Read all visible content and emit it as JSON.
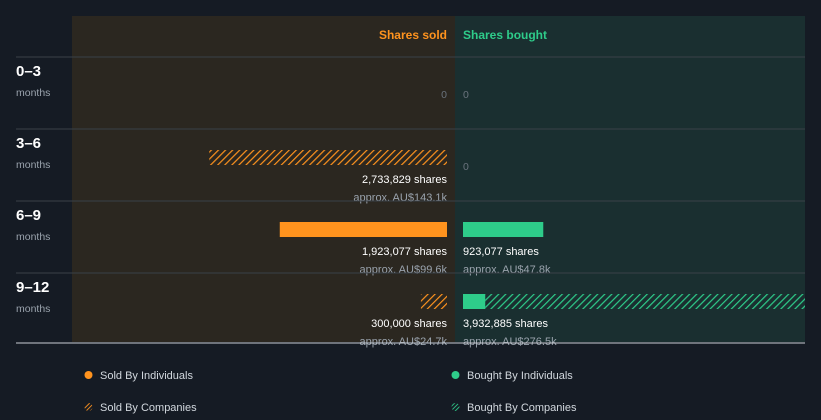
{
  "chart_data": {
    "type": "bar",
    "orientation": "horizontal-diverging",
    "column_headers": {
      "sold": "Shares sold",
      "bought": "Shares bought"
    },
    "unit_label": "months",
    "periods": [
      {
        "label": "0–3",
        "sold": {
          "total": 0,
          "individuals": 0,
          "companies": 0,
          "text": "0",
          "value_text": ""
        },
        "bought": {
          "total": 0,
          "individuals": 0,
          "companies": 0,
          "text": "0",
          "value_text": ""
        }
      },
      {
        "label": "3–6",
        "sold": {
          "total": 2733829,
          "individuals": 0,
          "companies": 2733829,
          "text": "2,733,829 shares",
          "value_text": "approx. AU$143.1k"
        },
        "bought": {
          "total": 0,
          "individuals": 0,
          "companies": 0,
          "text": "0",
          "value_text": ""
        }
      },
      {
        "label": "6–9",
        "sold": {
          "total": 1923077,
          "individuals": 1923077,
          "companies": 0,
          "text": "1,923,077 shares",
          "value_text": "approx. AU$99.6k"
        },
        "bought": {
          "total": 923077,
          "individuals": 923077,
          "companies": 0,
          "text": "923,077 shares",
          "value_text": "approx. AU$47.8k"
        }
      },
      {
        "label": "9–12",
        "sold": {
          "total": 300000,
          "individuals": 0,
          "companies": 300000,
          "text": "300,000 shares",
          "value_text": "approx. AU$24.7k"
        },
        "bought": {
          "total": 3932885,
          "individuals": 257000,
          "companies": 3675885,
          "text": "3,932,885 shares",
          "value_text": "approx. AU$276.5k"
        }
      }
    ],
    "legend": [
      {
        "key": "sold_individuals",
        "label": "Sold By Individuals",
        "color": "#ff931e",
        "style": "solid"
      },
      {
        "key": "bought_individuals",
        "label": "Bought By Individuals",
        "color": "#2ecc8a",
        "style": "solid"
      },
      {
        "key": "sold_companies",
        "label": "Sold By Companies",
        "color": "#ff931e",
        "style": "hatched"
      },
      {
        "key": "bought_companies",
        "label": "Bought By Companies",
        "color": "#2ecc8a",
        "style": "hatched"
      }
    ],
    "colors": {
      "background": "#151b24",
      "sold_panel": "#2b2720",
      "bought_panel": "#1a2f30",
      "sold": "#ff931e",
      "bought": "#2ecc8a"
    },
    "axis_max": 3932885
  }
}
